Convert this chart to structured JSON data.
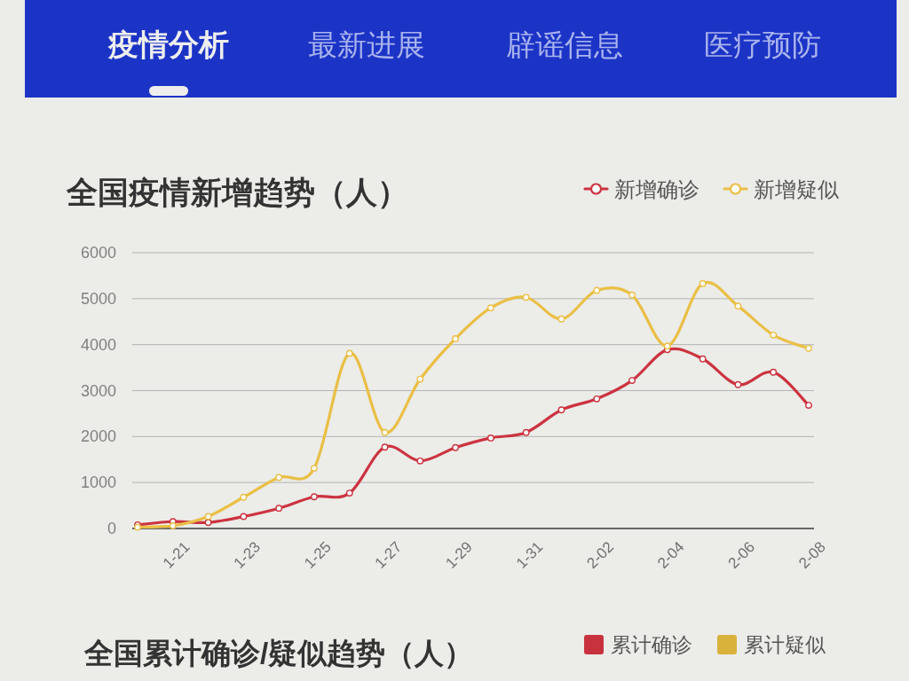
{
  "chart_data": [
    {
      "type": "other",
      "annotations": [
        "疫情分析",
        "最新进展",
        "辟谣信息",
        "医疗预防"
      ]
    },
    {
      "type": "line",
      "title": "全国疫情新增趋势（人）",
      "categories": [
        null,
        "1-21",
        null,
        "1-23",
        null,
        "1-25",
        null,
        "1-27",
        null,
        "1-29",
        null,
        "1-31",
        null,
        "2-02",
        null,
        "2-04",
        null,
        "2-06",
        null,
        "2-08"
      ],
      "series": [
        {
          "name": "新增确诊",
          "color": "#cc3340",
          "values": [
            80,
            150,
            130,
            260,
            440,
            690,
            770,
            1770,
            1470,
            1760,
            1970,
            2090,
            2580,
            2820,
            3220,
            3890,
            3690,
            3130,
            3400,
            2680
          ]
        },
        {
          "name": "新增疑似",
          "color": "#eabf45",
          "values": [
            30,
            60,
            260,
            680,
            1110,
            1310,
            3810,
            2090,
            3250,
            4130,
            4800,
            5030,
            4560,
            5180,
            5080,
            3970,
            5330,
            4840,
            4210,
            3920
          ]
        }
      ],
      "ylim": [
        0,
        6000
      ],
      "yticks": [
        0,
        1000,
        2000,
        3000,
        4000,
        5000,
        6000
      ],
      "grid": "y",
      "legend": "top right",
      "marker": "circle",
      "line_style": "solid"
    },
    {
      "type": "other",
      "title": "全国累计确诊/疑似趋势（人）",
      "series": [
        {
          "name": "累计确诊",
          "color": "#c8323e"
        },
        {
          "name": "累计疑似",
          "color": "#d9b23c"
        }
      ],
      "legend": "top right"
    }
  ]
}
